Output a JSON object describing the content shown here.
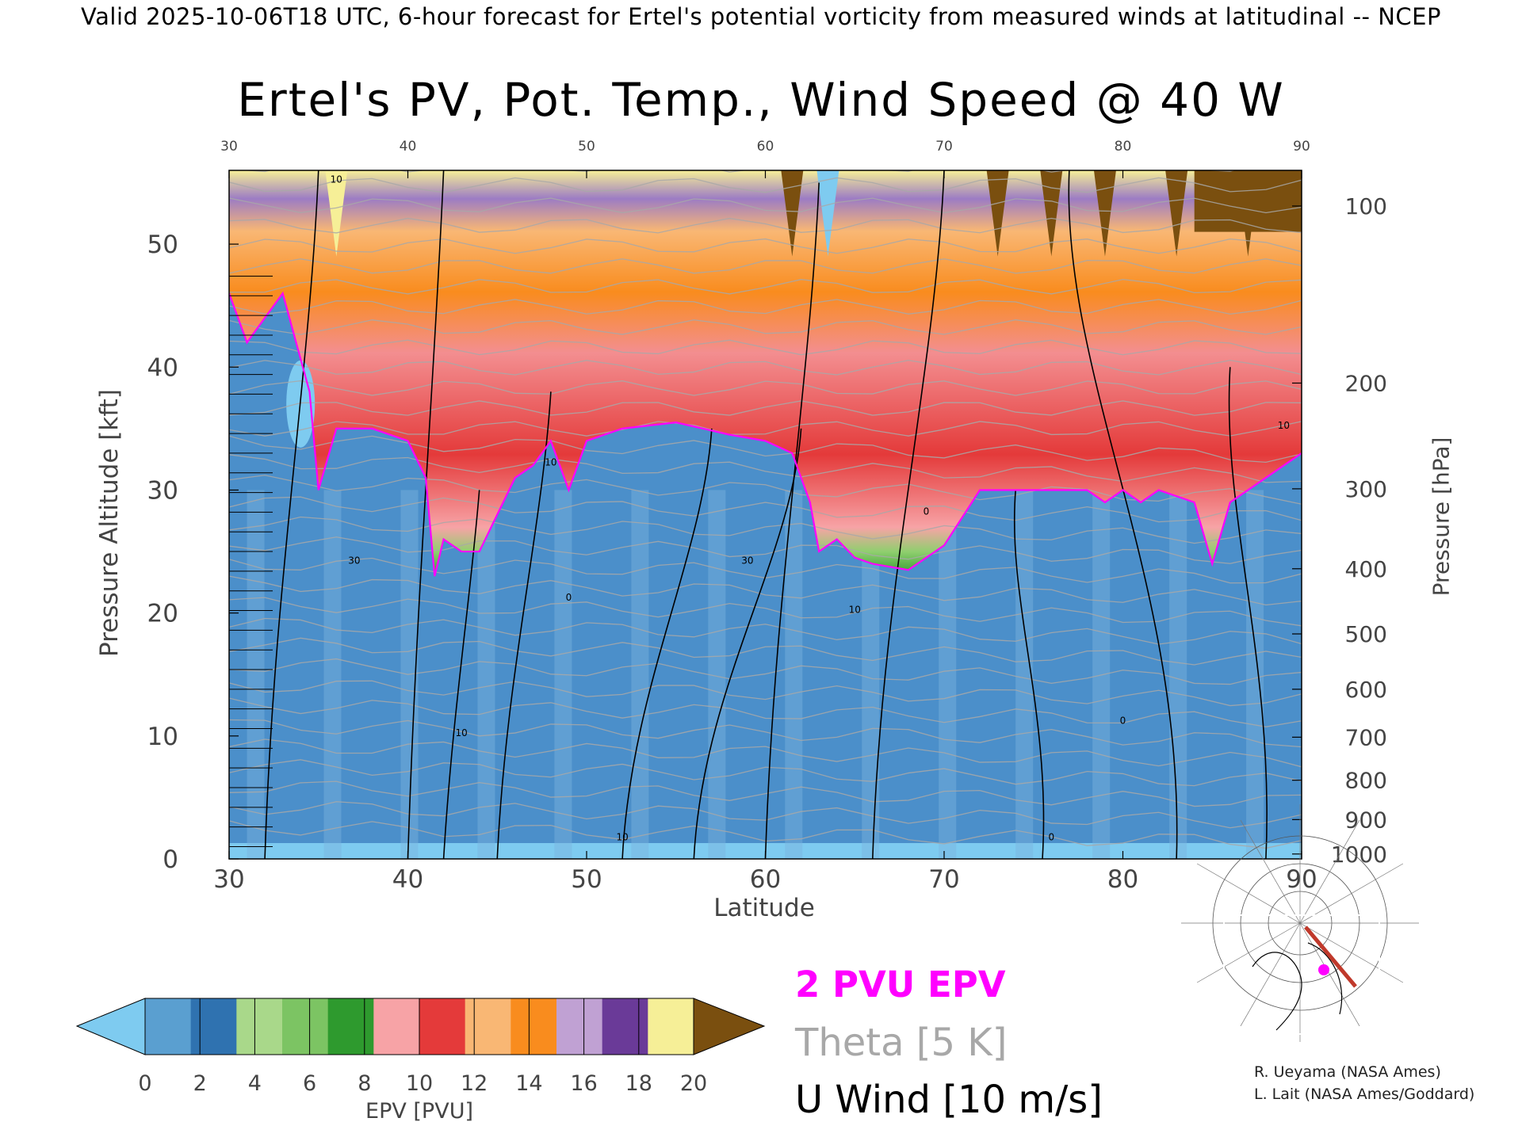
{
  "header": "Valid 2025-10-06T18 UTC, 6-hour forecast for Ertel's potential vorticity from measured winds at latitudinal -- NCEP",
  "chart_data": {
    "type": "heatmap",
    "title": "Ertel's PV, Pot. Temp., Wind Speed @ 40 W",
    "xlabel": "Latitude",
    "ylabel": "Pressure Altitude [kft]",
    "ylabel_right": "Pressure [hPa]",
    "xlim": [
      30,
      90
    ],
    "ylim": [
      0,
      56
    ],
    "x_ticks": [
      30,
      40,
      50,
      60,
      70,
      80,
      90
    ],
    "y_ticks": [
      0,
      10,
      20,
      30,
      40,
      50
    ],
    "pressure_ticks": [
      {
        "hPa": "100",
        "kft": 53.1
      },
      {
        "hPa": "200",
        "kft": 38.7
      },
      {
        "hPa": "300",
        "kft": 30.1
      },
      {
        "hPa": "400",
        "kft": 23.6
      },
      {
        "hPa": "500",
        "kft": 18.3
      },
      {
        "hPa": "600",
        "kft": 13.8
      },
      {
        "hPa": "700",
        "kft": 9.9
      },
      {
        "hPa": "800",
        "kft": 6.4
      },
      {
        "hPa": "900",
        "kft": 3.2
      },
      {
        "hPa": "1000",
        "kft": 0.4
      }
    ],
    "colorbar": {
      "label": "EPV [PVU]",
      "ticks": [
        "0",
        "2",
        "4",
        "6",
        "8",
        "10",
        "12",
        "14",
        "16",
        "18",
        "20"
      ],
      "range": [
        0,
        20
      ],
      "under_color": "#7ecbf0",
      "over_color": "#7a4f0f",
      "colors": [
        "#5a9fd0",
        "#2f72b0",
        "#a9d88a",
        "#7cc463",
        "#2e9a2e",
        "#f7a3a6",
        "#e43a3a",
        "#f9b774",
        "#f98c1e",
        "#c0a1d3",
        "#6a3a98",
        "#f6ef97"
      ]
    },
    "tropopause_2pvu_kft": [
      {
        "lat": 30,
        "kft": 46
      },
      {
        "lat": 31,
        "kft": 42
      },
      {
        "lat": 33,
        "kft": 46
      },
      {
        "lat": 34.5,
        "kft": 38
      },
      {
        "lat": 35,
        "kft": 30
      },
      {
        "lat": 36,
        "kft": 35
      },
      {
        "lat": 38,
        "kft": 35
      },
      {
        "lat": 40,
        "kft": 34
      },
      {
        "lat": 41,
        "kft": 31
      },
      {
        "lat": 41.5,
        "kft": 23
      },
      {
        "lat": 42,
        "kft": 26
      },
      {
        "lat": 43,
        "kft": 25
      },
      {
        "lat": 44,
        "kft": 25
      },
      {
        "lat": 45,
        "kft": 28
      },
      {
        "lat": 46,
        "kft": 31
      },
      {
        "lat": 47,
        "kft": 32
      },
      {
        "lat": 48,
        "kft": 34
      },
      {
        "lat": 49,
        "kft": 30
      },
      {
        "lat": 50,
        "kft": 34
      },
      {
        "lat": 52,
        "kft": 35
      },
      {
        "lat": 55,
        "kft": 35.5
      },
      {
        "lat": 58,
        "kft": 34.5
      },
      {
        "lat": 60,
        "kft": 34
      },
      {
        "lat": 61.5,
        "kft": 33
      },
      {
        "lat": 62.5,
        "kft": 29
      },
      {
        "lat": 63,
        "kft": 25
      },
      {
        "lat": 64,
        "kft": 26
      },
      {
        "lat": 65,
        "kft": 24.5
      },
      {
        "lat": 66,
        "kft": 24
      },
      {
        "lat": 68,
        "kft": 23.5
      },
      {
        "lat": 70,
        "kft": 25.5
      },
      {
        "lat": 72,
        "kft": 30
      },
      {
        "lat": 75,
        "kft": 30
      },
      {
        "lat": 78,
        "kft": 30
      },
      {
        "lat": 79,
        "kft": 29
      },
      {
        "lat": 80,
        "kft": 30
      },
      {
        "lat": 81,
        "kft": 29
      },
      {
        "lat": 82,
        "kft": 30
      },
      {
        "lat": 84,
        "kft": 29
      },
      {
        "lat": 85,
        "kft": 24
      },
      {
        "lat": 86,
        "kft": 29
      },
      {
        "lat": 88,
        "kft": 31
      },
      {
        "lat": 90,
        "kft": 33
      }
    ],
    "wind_contour_labels": [
      {
        "text": "10",
        "lat": 36,
        "kft": 55
      },
      {
        "text": "30",
        "lat": 37,
        "kft": 24
      },
      {
        "text": "10",
        "lat": 43,
        "kft": 10
      },
      {
        "text": "10",
        "lat": 48,
        "kft": 32
      },
      {
        "text": "0",
        "lat": 49,
        "kft": 21
      },
      {
        "text": "10",
        "lat": 52,
        "kft": 1.5
      },
      {
        "text": "30",
        "lat": 59,
        "kft": 24
      },
      {
        "text": "10",
        "lat": 65,
        "kft": 20
      },
      {
        "text": "0",
        "lat": 69,
        "kft": 28
      },
      {
        "text": "0",
        "lat": 76,
        "kft": 1.5
      },
      {
        "text": "0",
        "lat": 80,
        "kft": 11
      },
      {
        "text": "10",
        "lat": 89,
        "kft": 35
      }
    ],
    "legend": [
      "2 PVU EPV",
      "Theta [5 K]",
      "U Wind [10 m/s]"
    ]
  },
  "colors": {
    "tropopause": "#ff00ff",
    "theta": "#a8a8a8",
    "wind": "#000000",
    "ocean_ice": "#7ecbf0"
  },
  "credits": [
    "R. Ueyama (NASA Ames)",
    "L. Lait (NASA Ames/Goddard)"
  ],
  "map_inset": {
    "icon": "polar-stereographic-map-icon"
  }
}
